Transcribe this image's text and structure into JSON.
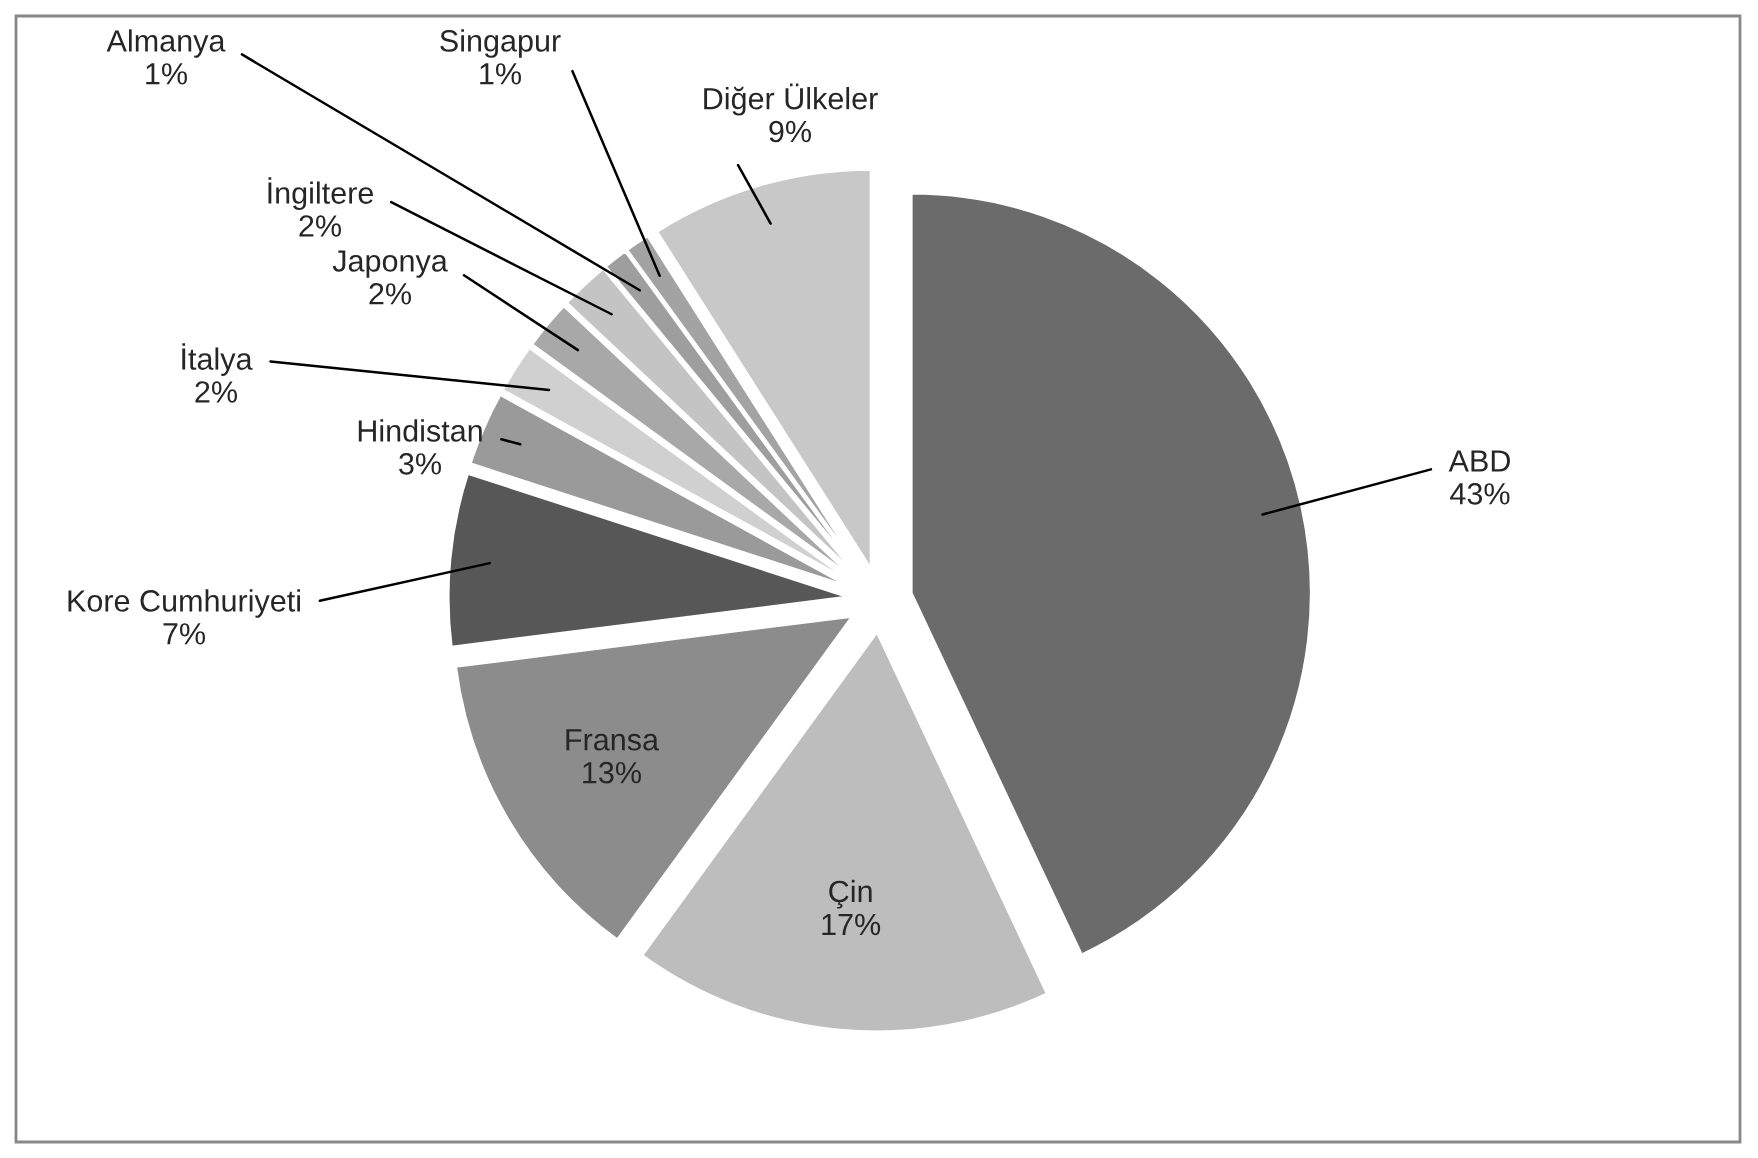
{
  "chart_data": {
    "type": "pie",
    "categories": [
      "ABD",
      "Çin",
      "Fransa",
      "Kore Cumhuriyeti",
      "Hindistan",
      "İtalya",
      "Japonya",
      "İngiltere",
      "Almanya",
      "Singapur",
      "Diğer Ülkeler"
    ],
    "values": [
      43,
      17,
      13,
      7,
      3,
      2,
      2,
      2,
      1,
      1,
      9
    ],
    "colors": [
      "#6b6b6b",
      "#bdbdbd",
      "#8c8c8c",
      "#575757",
      "#9a9a9a",
      "#d0d0d0",
      "#a8a8a8",
      "#c4c4c4",
      "#9e9e9e",
      "#a3a3a3",
      "#c8c8c8"
    ],
    "value_labels": [
      "43%",
      "17%",
      "13%",
      "7%",
      "3%",
      "2%",
      "2%",
      "2%",
      "1%",
      "1%",
      "9%"
    ],
    "data_labels": true,
    "legend": false
  }
}
